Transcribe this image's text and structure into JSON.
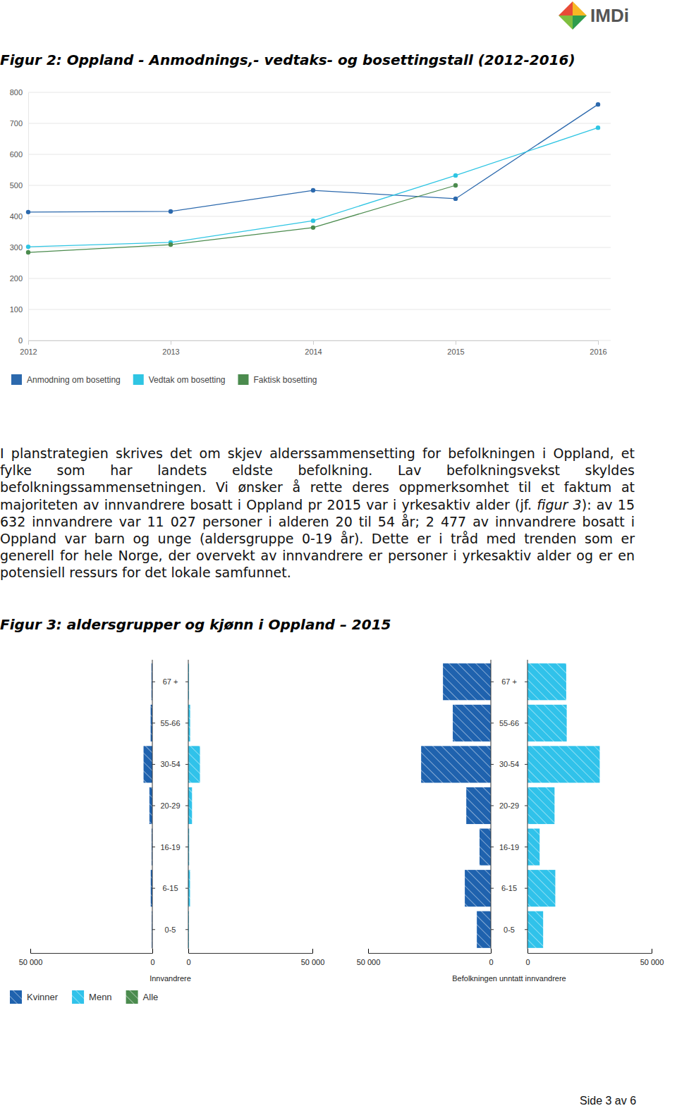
{
  "document": {
    "logo": "IMDi",
    "paragraph": [
      "I planstrategien skrives det om skjev alderssammensetting for befolkningen i Oppland, et fylke som har landets eldste befolkning. Lav befolkningsvekst skyldes befolkningssammensetningen. Vi ønsker å rette deres oppmerksomhet til et faktum at majoriteten av innvandrere bosatt i Oppland pr 2015 var i yrkesaktiv alder (jf. ",
      "figur 3",
      "): av 15 632 innvandrere var 11 027 personer i alderen 20 til 54 år; 2 477 av innvandrere bosatt i Oppland var barn og unge (aldersgruppe 0-19 år). Dette er i tråd med trenden som er generell for hele Norge, der overvekt av innvandrere er personer i yrkesaktiv alder og er en potensiell ressurs for det lokale samfunnet."
    ],
    "footer": "Side 3 av 6"
  },
  "chart_data": [
    {
      "type": "line",
      "title": "Figur 2: Oppland - Anmodnings,- vedtaks- og bosettingstall (2012-2016)",
      "x": [
        2012,
        2013,
        2014,
        2015,
        2016
      ],
      "xlim": [
        2012,
        2016
      ],
      "xticks": [
        2012,
        2013,
        2014,
        2015,
        2016
      ],
      "ylim": [
        0,
        800
      ],
      "yticks": [
        0,
        100,
        200,
        300,
        400,
        500,
        600,
        700,
        800
      ],
      "grid": true,
      "legend": "bottom-left",
      "marker": "circle",
      "series": [
        {
          "name": "Anmodning om bosetting",
          "color": "#2c69ad",
          "values": [
            414,
            416,
            484,
            457,
            761
          ]
        },
        {
          "name": "Vedtak om bosetting",
          "color": "#2fc5e3",
          "values": [
            302,
            316,
            386,
            532,
            686
          ]
        },
        {
          "name": "Faktisk bosetting",
          "color": "#4b8b4e",
          "values": [
            284,
            309,
            364,
            500,
            null
          ]
        }
      ]
    },
    {
      "type": "bar",
      "orientation": "horizontal",
      "title": "Figur 3: aldersgrupper og kjønn i Oppland – 2015",
      "xlabel": "Innvandrere",
      "categories": [
        "67 +",
        "55-66",
        "30-54",
        "20-29",
        "16-19",
        "6-15",
        "0-5"
      ],
      "xlim": [
        0,
        50000
      ],
      "xticks": [
        {
          "value": 0,
          "label": "0"
        },
        {
          "value": 50000,
          "label": "50 000"
        }
      ],
      "legend": "bottom-left",
      "series": [
        {
          "name": "Kvinner",
          "color": "#1f62ae",
          "values": [
            350,
            700,
            3600,
            1200,
            300,
            650,
            230
          ]
        },
        {
          "name": "Menn",
          "color": "#30c2ea",
          "values": [
            300,
            750,
            4700,
            1500,
            350,
            700,
            250
          ]
        },
        {
          "name": "Alle",
          "color": "#4b8b4e",
          "values": [
            null,
            null,
            null,
            null,
            null,
            null,
            null
          ]
        }
      ]
    },
    {
      "type": "bar",
      "orientation": "horizontal",
      "xlabel": "Befolkningen unntatt innvandrere",
      "categories": [
        "67 +",
        "55-66",
        "30-54",
        "20-29",
        "16-19",
        "6-15",
        "0-5"
      ],
      "xlim": [
        0,
        50000
      ],
      "xticks": [
        {
          "value": 0,
          "label": "0"
        },
        {
          "value": 50000,
          "label": "50 000"
        }
      ],
      "series": [
        {
          "name": "Kvinner",
          "color": "#1f62ae",
          "values": [
            19500,
            15500,
            28400,
            10000,
            4600,
            10600,
            5700
          ]
        },
        {
          "name": "Menn",
          "color": "#30c2ea",
          "values": [
            15600,
            15800,
            29100,
            10900,
            4900,
            11200,
            6300
          ]
        }
      ]
    }
  ]
}
